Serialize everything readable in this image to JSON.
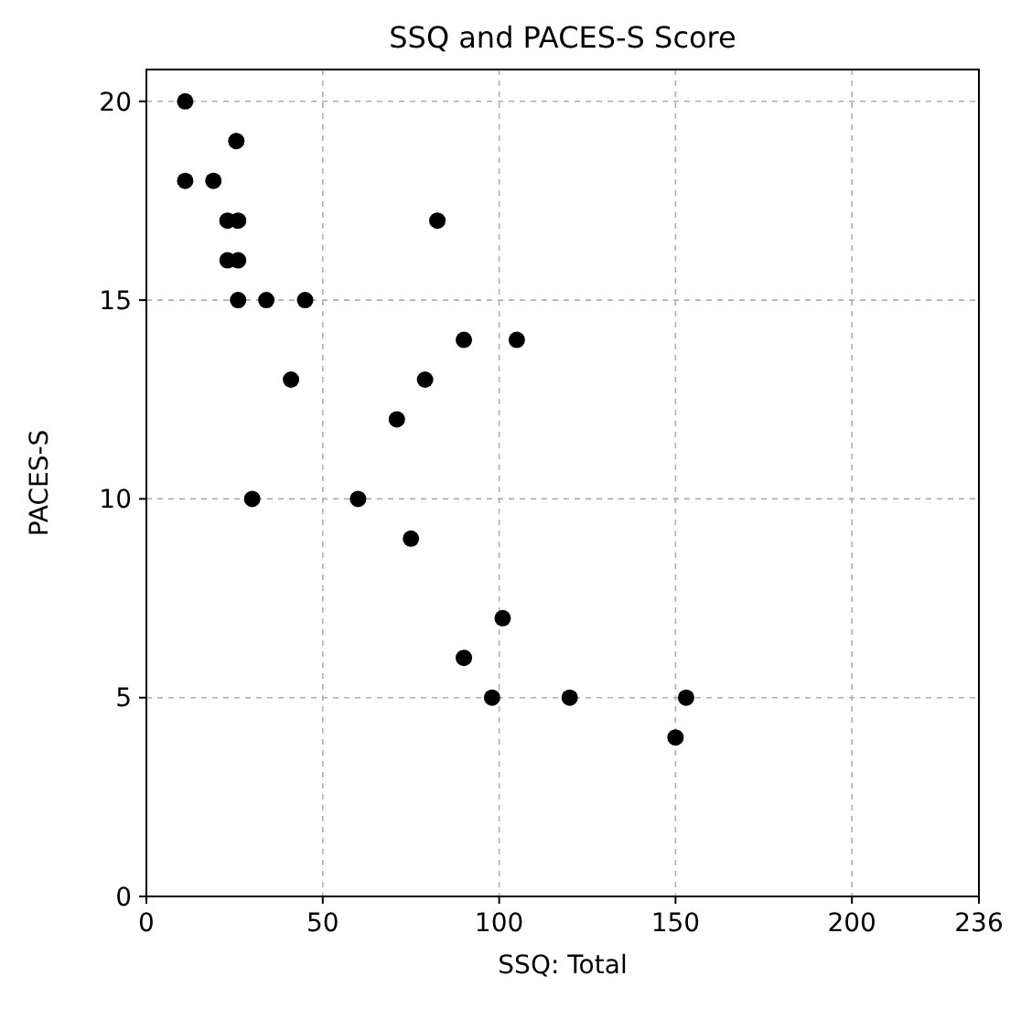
{
  "chart_data": {
    "type": "scatter",
    "title": "SSQ and PACES-S Score",
    "xlabel": "SSQ: Total",
    "ylabel": "PACES-S",
    "xlim": [
      0,
      236
    ],
    "xticks": [
      0,
      50,
      100,
      150,
      200,
      236
    ],
    "ylim": [
      0,
      20.8
    ],
    "yticks": [
      0,
      5,
      10,
      15,
      20
    ],
    "grid": true,
    "marker": "circle",
    "series": [
      {
        "color": "#000000",
        "x": [
          11,
          11,
          19,
          25.5,
          23,
          26,
          23,
          26,
          26,
          34,
          45,
          41,
          30,
          60,
          82.5,
          90,
          105,
          79,
          71,
          75,
          101,
          90,
          98,
          120,
          153,
          150
        ],
        "values": [
          20,
          18,
          18,
          19,
          17,
          17,
          16,
          16,
          15,
          15,
          15,
          13,
          10,
          10,
          17,
          14,
          14,
          13,
          12,
          9,
          7,
          6,
          5,
          5,
          5,
          4
        ]
      }
    ]
  }
}
